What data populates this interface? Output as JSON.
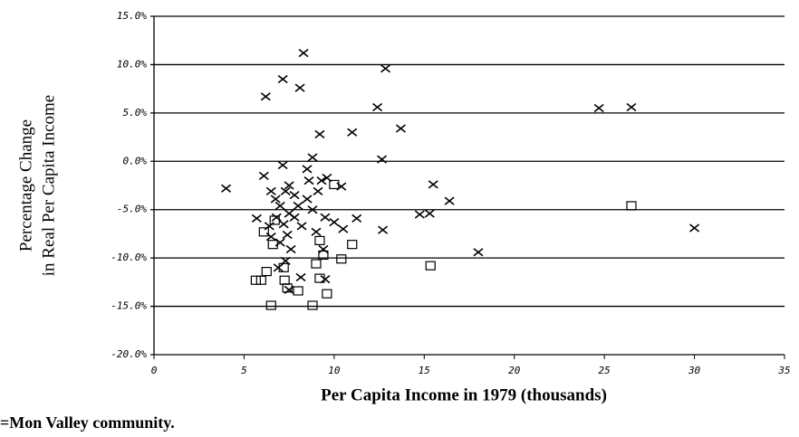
{
  "chart_data": {
    "type": "scatter",
    "xlabel": "Per Capita Income in 1979 (thousands)",
    "ylabel": [
      "Percentage Change",
      "in Real Per Capita Income"
    ],
    "note": "=Mon Valley community.",
    "xlim": [
      0,
      35
    ],
    "ylim": [
      -20,
      15
    ],
    "xticks": [
      0,
      5,
      10,
      15,
      20,
      25,
      30,
      35
    ],
    "yticks": [
      {
        "value": 15,
        "label": "15.0%"
      },
      {
        "value": 10,
        "label": "10.0%"
      },
      {
        "value": 5,
        "label": "5.0%"
      },
      {
        "value": 0,
        "label": "0.0%"
      },
      {
        "value": -5,
        "label": "-5.0%"
      },
      {
        "value": -10,
        "label": "-10.0%"
      },
      {
        "value": -15,
        "label": "-15.0%"
      },
      {
        "value": -20,
        "label": "-20.0%"
      }
    ],
    "grid": true,
    "series": [
      {
        "marker": "x",
        "color": "#000000",
        "x": [
          8.3,
          12.85,
          7.15,
          8.1,
          6.2,
          12.4,
          24.7,
          26.5,
          13.7,
          11.0,
          9.2,
          12.65,
          8.8,
          7.15,
          8.5,
          6.1,
          9.6,
          15.5,
          4.0,
          10.4,
          16.4,
          14.75,
          15.3,
          11.25,
          12.7,
          18.0,
          30.0,
          5.7,
          9.5,
          10.0,
          10.5,
          9.4,
          8.15,
          9.5,
          7.5,
          6.5,
          6.75,
          7.0,
          7.3,
          7.5,
          7.8,
          8.0,
          6.8,
          7.2,
          7.4,
          7.0,
          7.6,
          6.5,
          7.8,
          8.5,
          8.8,
          9.1,
          9.3,
          9.0,
          6.4,
          7.3,
          7.5,
          8.2,
          6.9,
          8.6
        ],
        "values": [
          11.2,
          9.6,
          8.5,
          7.6,
          6.7,
          5.6,
          5.5,
          5.6,
          3.4,
          3.0,
          2.8,
          0.2,
          0.4,
          -0.4,
          -0.8,
          -1.5,
          -1.7,
          -2.4,
          -2.8,
          -2.6,
          -4.1,
          -5.5,
          -5.4,
          -5.9,
          -7.1,
          -9.4,
          -6.9,
          -5.9,
          -5.8,
          -6.3,
          -7.0,
          -9.1,
          -12.0,
          -12.2,
          -13.3,
          -3.1,
          -3.9,
          -4.6,
          -3.1,
          -2.5,
          -3.5,
          -4.6,
          -5.8,
          -6.5,
          -7.6,
          -8.4,
          -9.1,
          -7.8,
          -5.8,
          -3.9,
          -5.0,
          -3.1,
          -2.0,
          -7.3,
          -6.7,
          -10.3,
          -5.4,
          -6.7,
          -11.0,
          -2.0
        ]
      },
      {
        "marker": "square",
        "color": "#000000",
        "x": [
          26.5,
          15.35,
          11.0,
          10.4,
          10.0,
          9.2,
          9.4,
          9.0,
          9.2,
          9.6,
          8.8,
          6.5,
          5.65,
          5.95,
          6.25,
          6.1,
          6.6,
          7.2,
          7.25,
          7.4,
          8.0,
          6.7
        ],
        "values": [
          -4.6,
          -10.8,
          -8.6,
          -10.1,
          -2.4,
          -8.2,
          -9.7,
          -10.6,
          -12.1,
          -13.7,
          -14.9,
          -14.9,
          -12.3,
          -12.3,
          -11.4,
          -7.3,
          -8.6,
          -11.0,
          -12.3,
          -13.1,
          -13.4,
          -6.1
        ]
      }
    ]
  }
}
